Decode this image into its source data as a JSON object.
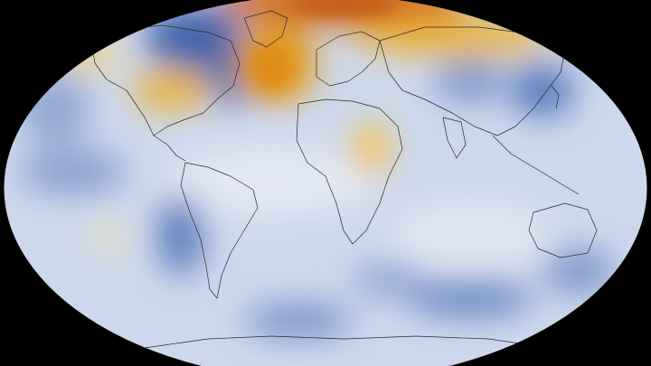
{
  "map": {
    "projection": "robinson",
    "base_color": "#c9d6ec",
    "warm_color": "#e8a317",
    "hot_color": "#d2691e",
    "cold_color": "#4a6fb0",
    "border_color": "#2b2b2b",
    "background": "#000000",
    "anomalies": [
      {
        "kind": "warm",
        "intensity": 0.9,
        "region": "arctic-north-atlantic"
      },
      {
        "kind": "warm",
        "intensity": 0.7,
        "region": "eastern-north-america"
      },
      {
        "kind": "warm",
        "intensity": 0.6,
        "region": "northern-eurasia"
      },
      {
        "kind": "warm",
        "intensity": 0.55,
        "region": "central-africa"
      },
      {
        "kind": "warm",
        "intensity": 0.35,
        "region": "central-pacific"
      },
      {
        "kind": "cold",
        "intensity": 0.7,
        "region": "canada-greenland"
      },
      {
        "kind": "cold",
        "intensity": 0.55,
        "region": "east-asia-pacific"
      },
      {
        "kind": "cold",
        "intensity": 0.5,
        "region": "south-atlantic"
      },
      {
        "kind": "cold",
        "intensity": 0.5,
        "region": "southern-ocean"
      }
    ]
  }
}
